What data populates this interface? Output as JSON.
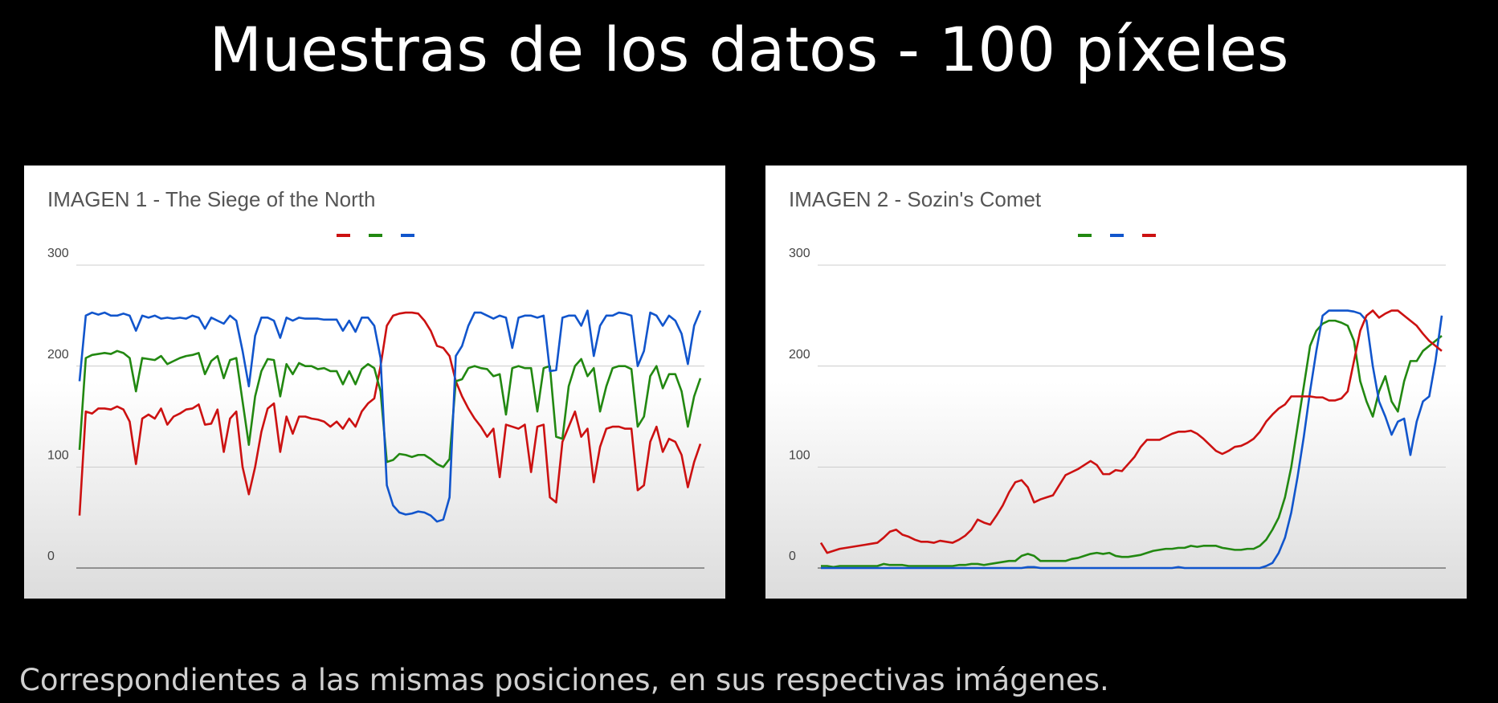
{
  "title": "Muestras de los datos - 100 píxeles",
  "caption": "Correspondientes a las mismas posiciones, en sus respectivas imágenes.",
  "chart_data": [
    {
      "type": "line",
      "title": "IMAGEN 1 - The Siege of the North",
      "ylim": [
        0,
        300
      ],
      "yticks": [
        0,
        100,
        200,
        300
      ],
      "grid": true,
      "series": [
        {
          "color": "#cc1111",
          "values": [
            52,
            155,
            153,
            158,
            158,
            157,
            160,
            157,
            145,
            103,
            148,
            152,
            148,
            158,
            142,
            150,
            153,
            157,
            158,
            162,
            142,
            143,
            157,
            115,
            148,
            155,
            100,
            73,
            100,
            135,
            158,
            163,
            115,
            150,
            133,
            150,
            150,
            148,
            147,
            145,
            140,
            145,
            138,
            148,
            140,
            155,
            163,
            168,
            200,
            240,
            250,
            252,
            253,
            253,
            252,
            245,
            235,
            220,
            218,
            210,
            185,
            170,
            158,
            148,
            140,
            130,
            138,
            90,
            142,
            140,
            138,
            142,
            95,
            140,
            142,
            70,
            65,
            125,
            140,
            155,
            130,
            138,
            85,
            120,
            138,
            140,
            140,
            138,
            138,
            77,
            82,
            125,
            140,
            115,
            128,
            125,
            112,
            80,
            105,
            123
          ]
        },
        {
          "color": "#228811",
          "values": [
            117,
            208,
            211,
            212,
            213,
            212,
            215,
            213,
            208,
            175,
            208,
            207,
            206,
            210,
            202,
            205,
            208,
            210,
            211,
            213,
            192,
            205,
            210,
            188,
            206,
            208,
            165,
            122,
            170,
            195,
            207,
            206,
            170,
            202,
            192,
            203,
            200,
            200,
            197,
            198,
            195,
            195,
            182,
            195,
            182,
            197,
            202,
            198,
            175,
            105,
            107,
            113,
            112,
            110,
            112,
            112,
            108,
            103,
            100,
            108,
            185,
            187,
            198,
            200,
            198,
            197,
            190,
            192,
            152,
            198,
            200,
            198,
            198,
            155,
            198,
            200,
            130,
            128,
            180,
            200,
            207,
            190,
            198,
            155,
            180,
            198,
            200,
            200,
            197,
            140,
            150,
            190,
            200,
            178,
            192,
            192,
            175,
            140,
            170,
            188
          ]
        },
        {
          "color": "#1155cc",
          "values": [
            185,
            250,
            253,
            251,
            253,
            250,
            250,
            252,
            250,
            235,
            250,
            248,
            250,
            247,
            248,
            247,
            248,
            247,
            250,
            248,
            237,
            248,
            245,
            242,
            250,
            245,
            215,
            180,
            230,
            248,
            248,
            245,
            228,
            248,
            245,
            248,
            247,
            247,
            247,
            246,
            246,
            246,
            235,
            245,
            234,
            248,
            248,
            240,
            208,
            82,
            62,
            55,
            53,
            54,
            56,
            55,
            52,
            46,
            48,
            70,
            210,
            220,
            240,
            253,
            253,
            250,
            247,
            250,
            248,
            218,
            248,
            250,
            250,
            248,
            250,
            195,
            196,
            248,
            250,
            250,
            240,
            255,
            210,
            240,
            250,
            250,
            253,
            252,
            250,
            200,
            215,
            253,
            250,
            240,
            250,
            245,
            232,
            202,
            240,
            255
          ]
        }
      ]
    },
    {
      "type": "line",
      "title": "IMAGEN 2 - Sozin's Comet",
      "ylim": [
        0,
        300
      ],
      "yticks": [
        0,
        100,
        200,
        300
      ],
      "grid": true,
      "series": [
        {
          "color": "#228811",
          "values": [
            2,
            2,
            1,
            2,
            2,
            2,
            2,
            2,
            2,
            2,
            4,
            3,
            3,
            3,
            2,
            2,
            2,
            2,
            2,
            2,
            2,
            2,
            3,
            3,
            4,
            4,
            3,
            4,
            5,
            6,
            7,
            7,
            12,
            14,
            12,
            7,
            7,
            7,
            7,
            7,
            9,
            10,
            12,
            14,
            15,
            14,
            15,
            12,
            11,
            11,
            12,
            13,
            15,
            17,
            18,
            19,
            19,
            20,
            20,
            22,
            21,
            22,
            22,
            22,
            20,
            19,
            18,
            18,
            19,
            19,
            22,
            28,
            38,
            50,
            70,
            100,
            140,
            180,
            220,
            235,
            242,
            245,
            245,
            243,
            240,
            225,
            185,
            165,
            150,
            175,
            190,
            165,
            155,
            185,
            205,
            205,
            215,
            220,
            225,
            230
          ]
        },
        {
          "color": "#1155cc",
          "values": [
            0,
            0,
            0,
            0,
            0,
            0,
            0,
            0,
            0,
            0,
            0,
            0,
            0,
            0,
            0,
            0,
            0,
            0,
            0,
            0,
            0,
            0,
            0,
            0,
            0,
            0,
            0,
            0,
            0,
            0,
            0,
            0,
            0,
            1,
            1,
            0,
            0,
            0,
            0,
            0,
            0,
            0,
            0,
            0,
            0,
            0,
            0,
            0,
            0,
            0,
            0,
            0,
            0,
            0,
            0,
            0,
            0,
            1,
            0,
            0,
            0,
            0,
            0,
            0,
            0,
            0,
            0,
            0,
            0,
            0,
            0,
            2,
            5,
            15,
            30,
            55,
            90,
            130,
            175,
            215,
            250,
            255,
            255,
            255,
            255,
            254,
            252,
            245,
            200,
            165,
            150,
            132,
            145,
            148,
            112,
            145,
            165,
            170,
            205,
            250
          ]
        },
        {
          "color": "#cc1111",
          "values": [
            25,
            15,
            17,
            19,
            20,
            21,
            22,
            23,
            24,
            25,
            30,
            36,
            38,
            33,
            31,
            28,
            26,
            26,
            25,
            27,
            26,
            25,
            28,
            32,
            38,
            48,
            45,
            43,
            52,
            62,
            75,
            85,
            87,
            80,
            65,
            68,
            70,
            72,
            82,
            92,
            95,
            98,
            102,
            106,
            102,
            93,
            93,
            97,
            96,
            103,
            110,
            120,
            127,
            127,
            127,
            130,
            133,
            135,
            135,
            136,
            133,
            128,
            122,
            116,
            113,
            116,
            120,
            121,
            124,
            128,
            135,
            145,
            152,
            158,
            162,
            170,
            170,
            170,
            170,
            169,
            169,
            166,
            166,
            168,
            175,
            205,
            235,
            250,
            255,
            248,
            252,
            255,
            255,
            250,
            245,
            240,
            232,
            225,
            220,
            215
          ]
        }
      ]
    }
  ]
}
